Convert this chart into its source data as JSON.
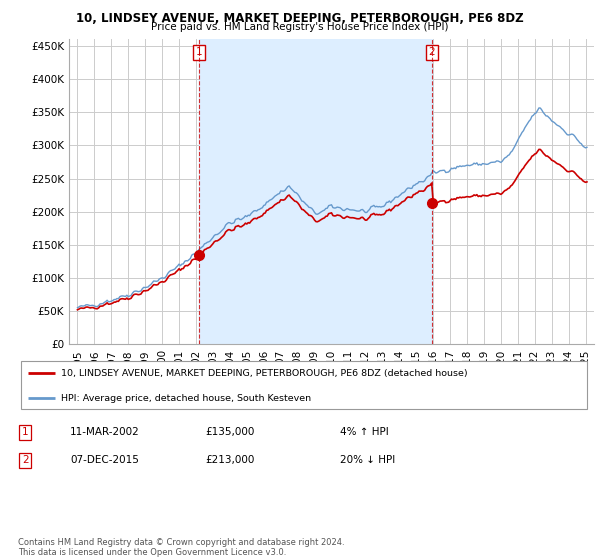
{
  "title": "10, LINDSEY AVENUE, MARKET DEEPING, PETERBOROUGH, PE6 8DZ",
  "subtitle": "Price paid vs. HM Land Registry's House Price Index (HPI)",
  "legend_line1": "10, LINDSEY AVENUE, MARKET DEEPING, PETERBOROUGH, PE6 8DZ (detached house)",
  "legend_line2": "HPI: Average price, detached house, South Kesteven",
  "footer": "Contains HM Land Registry data © Crown copyright and database right 2024.\nThis data is licensed under the Open Government Licence v3.0.",
  "sale1_date": "11-MAR-2002",
  "sale1_price": "135,000",
  "sale1_hpi": "4% ↑ HPI",
  "sale2_date": "07-DEC-2015",
  "sale2_price": "213,000",
  "sale2_hpi": "20% ↓ HPI",
  "sale1_x": 2002.19,
  "sale1_y": 135000,
  "sale2_x": 2015.92,
  "sale2_y": 213000,
  "ylim": [
    0,
    460000
  ],
  "xlim_start": 1994.5,
  "xlim_end": 2025.5,
  "background_color": "#ffffff",
  "plot_bg_color": "#ffffff",
  "shade_color": "#ddeeff",
  "grid_color": "#cccccc",
  "hpi_line_color": "#6699cc",
  "price_line_color": "#cc0000",
  "sale_marker_color": "#cc0000",
  "vline_color": "#cc0000",
  "yticks": [
    0,
    50000,
    100000,
    150000,
    200000,
    250000,
    300000,
    350000,
    400000,
    450000
  ],
  "ytick_labels": [
    "£0",
    "£50K",
    "£100K",
    "£150K",
    "£200K",
    "£250K",
    "£300K",
    "£350K",
    "£400K",
    "£450K"
  ],
  "xticks": [
    1995,
    1996,
    1997,
    1998,
    1999,
    2000,
    2001,
    2002,
    2003,
    2004,
    2005,
    2006,
    2007,
    2008,
    2009,
    2010,
    2011,
    2012,
    2013,
    2014,
    2015,
    2016,
    2017,
    2018,
    2019,
    2020,
    2021,
    2022,
    2023,
    2024,
    2025
  ]
}
